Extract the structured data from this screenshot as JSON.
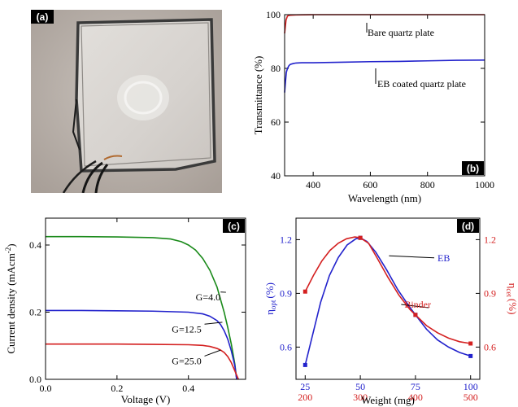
{
  "photo": {
    "label": "(a)"
  },
  "chart_data": [
    {
      "id": "b",
      "type": "line",
      "panel_label": "(b)",
      "xlabel": "Wavelength (nm)",
      "ylabel": "Transmittance (%)",
      "xlim": [
        300,
        1000
      ],
      "ylim": [
        40,
        100
      ],
      "xticks": [
        400,
        600,
        800,
        1000
      ],
      "yticks": [
        40,
        60,
        80,
        100
      ],
      "series": [
        {
          "name": "Bare quartz plate",
          "color": "#d42020",
          "x": [
            300,
            305,
            310,
            320,
            340,
            400,
            600,
            800,
            1000
          ],
          "y": [
            93,
            98,
            99.5,
            99.8,
            99.9,
            100,
            100,
            100,
            100
          ]
        },
        {
          "name": "EB coated quartz plate",
          "color": "#2222cc",
          "x": [
            300,
            303,
            306,
            310,
            315,
            320,
            330,
            340,
            360,
            400,
            500,
            600,
            700,
            800,
            900,
            1000
          ],
          "y": [
            71,
            75,
            78.5,
            80,
            81,
            81.5,
            81.8,
            82,
            82.1,
            82.1,
            82.3,
            82.5,
            82.6,
            82.8,
            83,
            83.1
          ]
        }
      ]
    },
    {
      "id": "c",
      "type": "line",
      "panel_label": "(c)",
      "xlabel": "Voltage (V)",
      "ylabel": "Current density (mAcm",
      "ylabel_sup": "-2",
      "ylabel_tail": ")",
      "xlim": [
        0,
        0.56
      ],
      "ylim": [
        0,
        0.48
      ],
      "xticks": [
        0.0,
        0.2,
        0.4
      ],
      "yticks": [
        0.0,
        0.2,
        0.4
      ],
      "series": [
        {
          "name": "G=4.0",
          "color": "#1a8a1a",
          "x": [
            0,
            0.1,
            0.2,
            0.3,
            0.35,
            0.38,
            0.4,
            0.42,
            0.44,
            0.46,
            0.48,
            0.5,
            0.51,
            0.52,
            0.53,
            0.535
          ],
          "y": [
            0.425,
            0.425,
            0.424,
            0.422,
            0.418,
            0.41,
            0.4,
            0.385,
            0.36,
            0.325,
            0.275,
            0.2,
            0.155,
            0.105,
            0.045,
            0.0
          ]
        },
        {
          "name": "G=12.5",
          "color": "#2222cc",
          "x": [
            0,
            0.1,
            0.2,
            0.3,
            0.4,
            0.44,
            0.46,
            0.48,
            0.49,
            0.5,
            0.51,
            0.52,
            0.53,
            0.535
          ],
          "y": [
            0.205,
            0.205,
            0.204,
            0.203,
            0.2,
            0.195,
            0.188,
            0.175,
            0.163,
            0.145,
            0.12,
            0.085,
            0.04,
            0.0
          ]
        },
        {
          "name": "G=25.0",
          "color": "#d42020",
          "x": [
            0,
            0.1,
            0.2,
            0.3,
            0.4,
            0.44,
            0.46,
            0.48,
            0.49,
            0.5,
            0.51,
            0.52,
            0.53,
            0.54
          ],
          "y": [
            0.105,
            0.105,
            0.105,
            0.104,
            0.103,
            0.101,
            0.098,
            0.092,
            0.087,
            0.08,
            0.068,
            0.05,
            0.025,
            0.0
          ]
        }
      ],
      "annotations": [
        {
          "text": "G=4.0",
          "x": 0.455,
          "y": 0.235,
          "target": [
            0.49,
            0.26
          ]
        },
        {
          "text": "G=12.5",
          "x": 0.395,
          "y": 0.14,
          "target": [
            0.495,
            0.17
          ]
        },
        {
          "text": "G=25.0",
          "x": 0.395,
          "y": 0.045,
          "target": [
            0.49,
            0.087
          ]
        }
      ]
    },
    {
      "id": "d",
      "type": "line",
      "panel_label": "(d)",
      "xlabel": "Weight (mg)",
      "ylabel_left": "η",
      "ylabel_left_sub": "opt",
      "ylabel_left_tail": "(%)",
      "ylabel_right": "η",
      "ylabel_right_sub": "cet",
      "ylabel_right_tail": "(%)",
      "ylim": [
        0.42,
        1.32
      ],
      "yticks": [
        0.6,
        0.9,
        1.2
      ],
      "top_axis": {
        "color": "#2222cc",
        "xlim": [
          25,
          100
        ],
        "ticks": [
          25,
          50,
          75,
          100
        ]
      },
      "bottom_axis": {
        "color": "#d42020",
        "xlim": [
          200,
          500
        ],
        "ticks": [
          200,
          300,
          400,
          500
        ]
      },
      "series": [
        {
          "name": "EB",
          "color": "#2222cc",
          "axis": "top",
          "points_x": [
            25,
            50,
            75,
            100
          ],
          "points_y": [
            0.5,
            1.21,
            0.78,
            0.55
          ],
          "x": [
            25,
            28,
            32,
            36,
            40,
            44,
            48,
            50,
            53,
            57,
            62,
            67,
            72,
            75,
            80,
            85,
            90,
            95,
            100
          ],
          "y": [
            0.5,
            0.65,
            0.85,
            1.0,
            1.1,
            1.17,
            1.205,
            1.21,
            1.19,
            1.13,
            1.03,
            0.92,
            0.83,
            0.78,
            0.7,
            0.64,
            0.6,
            0.57,
            0.55
          ]
        },
        {
          "name": "Binder",
          "color": "#d42020",
          "axis": "bottom",
          "points_x": [
            200,
            300,
            400,
            500
          ],
          "points_y": [
            0.91,
            1.21,
            0.78,
            0.62
          ],
          "x": [
            200,
            215,
            230,
            245,
            260,
            275,
            290,
            300,
            315,
            330,
            350,
            370,
            390,
            400,
            420,
            440,
            460,
            480,
            500
          ],
          "y": [
            0.91,
            1.0,
            1.08,
            1.14,
            1.18,
            1.205,
            1.215,
            1.21,
            1.18,
            1.1,
            0.99,
            0.89,
            0.81,
            0.78,
            0.72,
            0.68,
            0.65,
            0.63,
            0.62
          ]
        }
      ],
      "annotations": [
        {
          "text": "EB",
          "x": 85,
          "y": 1.08,
          "axis": "top",
          "target": [
            63,
            1.11
          ]
        },
        {
          "text": "Binder",
          "x": 70,
          "y": 0.82,
          "axis": "top",
          "target": [
            81,
            0.82
          ]
        }
      ]
    }
  ]
}
